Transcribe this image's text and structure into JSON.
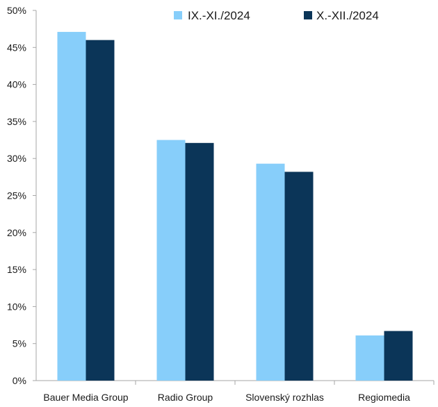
{
  "chart_data": {
    "type": "bar",
    "categories": [
      "Bauer Media Group",
      "Radio Group",
      "Slovenský rozhlas",
      "Regiomedia"
    ],
    "series": [
      {
        "name": "IX.-XI./2024",
        "values": [
          47.1,
          32.5,
          29.3,
          6.1
        ]
      },
      {
        "name": "X.-XII./2024",
        "values": [
          46.0,
          32.1,
          28.2,
          6.7
        ]
      }
    ],
    "y_ticks": [
      "0%",
      "5%",
      "10%",
      "15%",
      "20%",
      "25%",
      "30%",
      "35%",
      "40%",
      "45%",
      "50%"
    ],
    "ylim": [
      0,
      50
    ],
    "y_step": 5,
    "grid": false,
    "legend_position": "top-right",
    "colors": [
      "#87CEFA",
      "#0B3558"
    ],
    "axis_color": "#A6A6A6"
  }
}
